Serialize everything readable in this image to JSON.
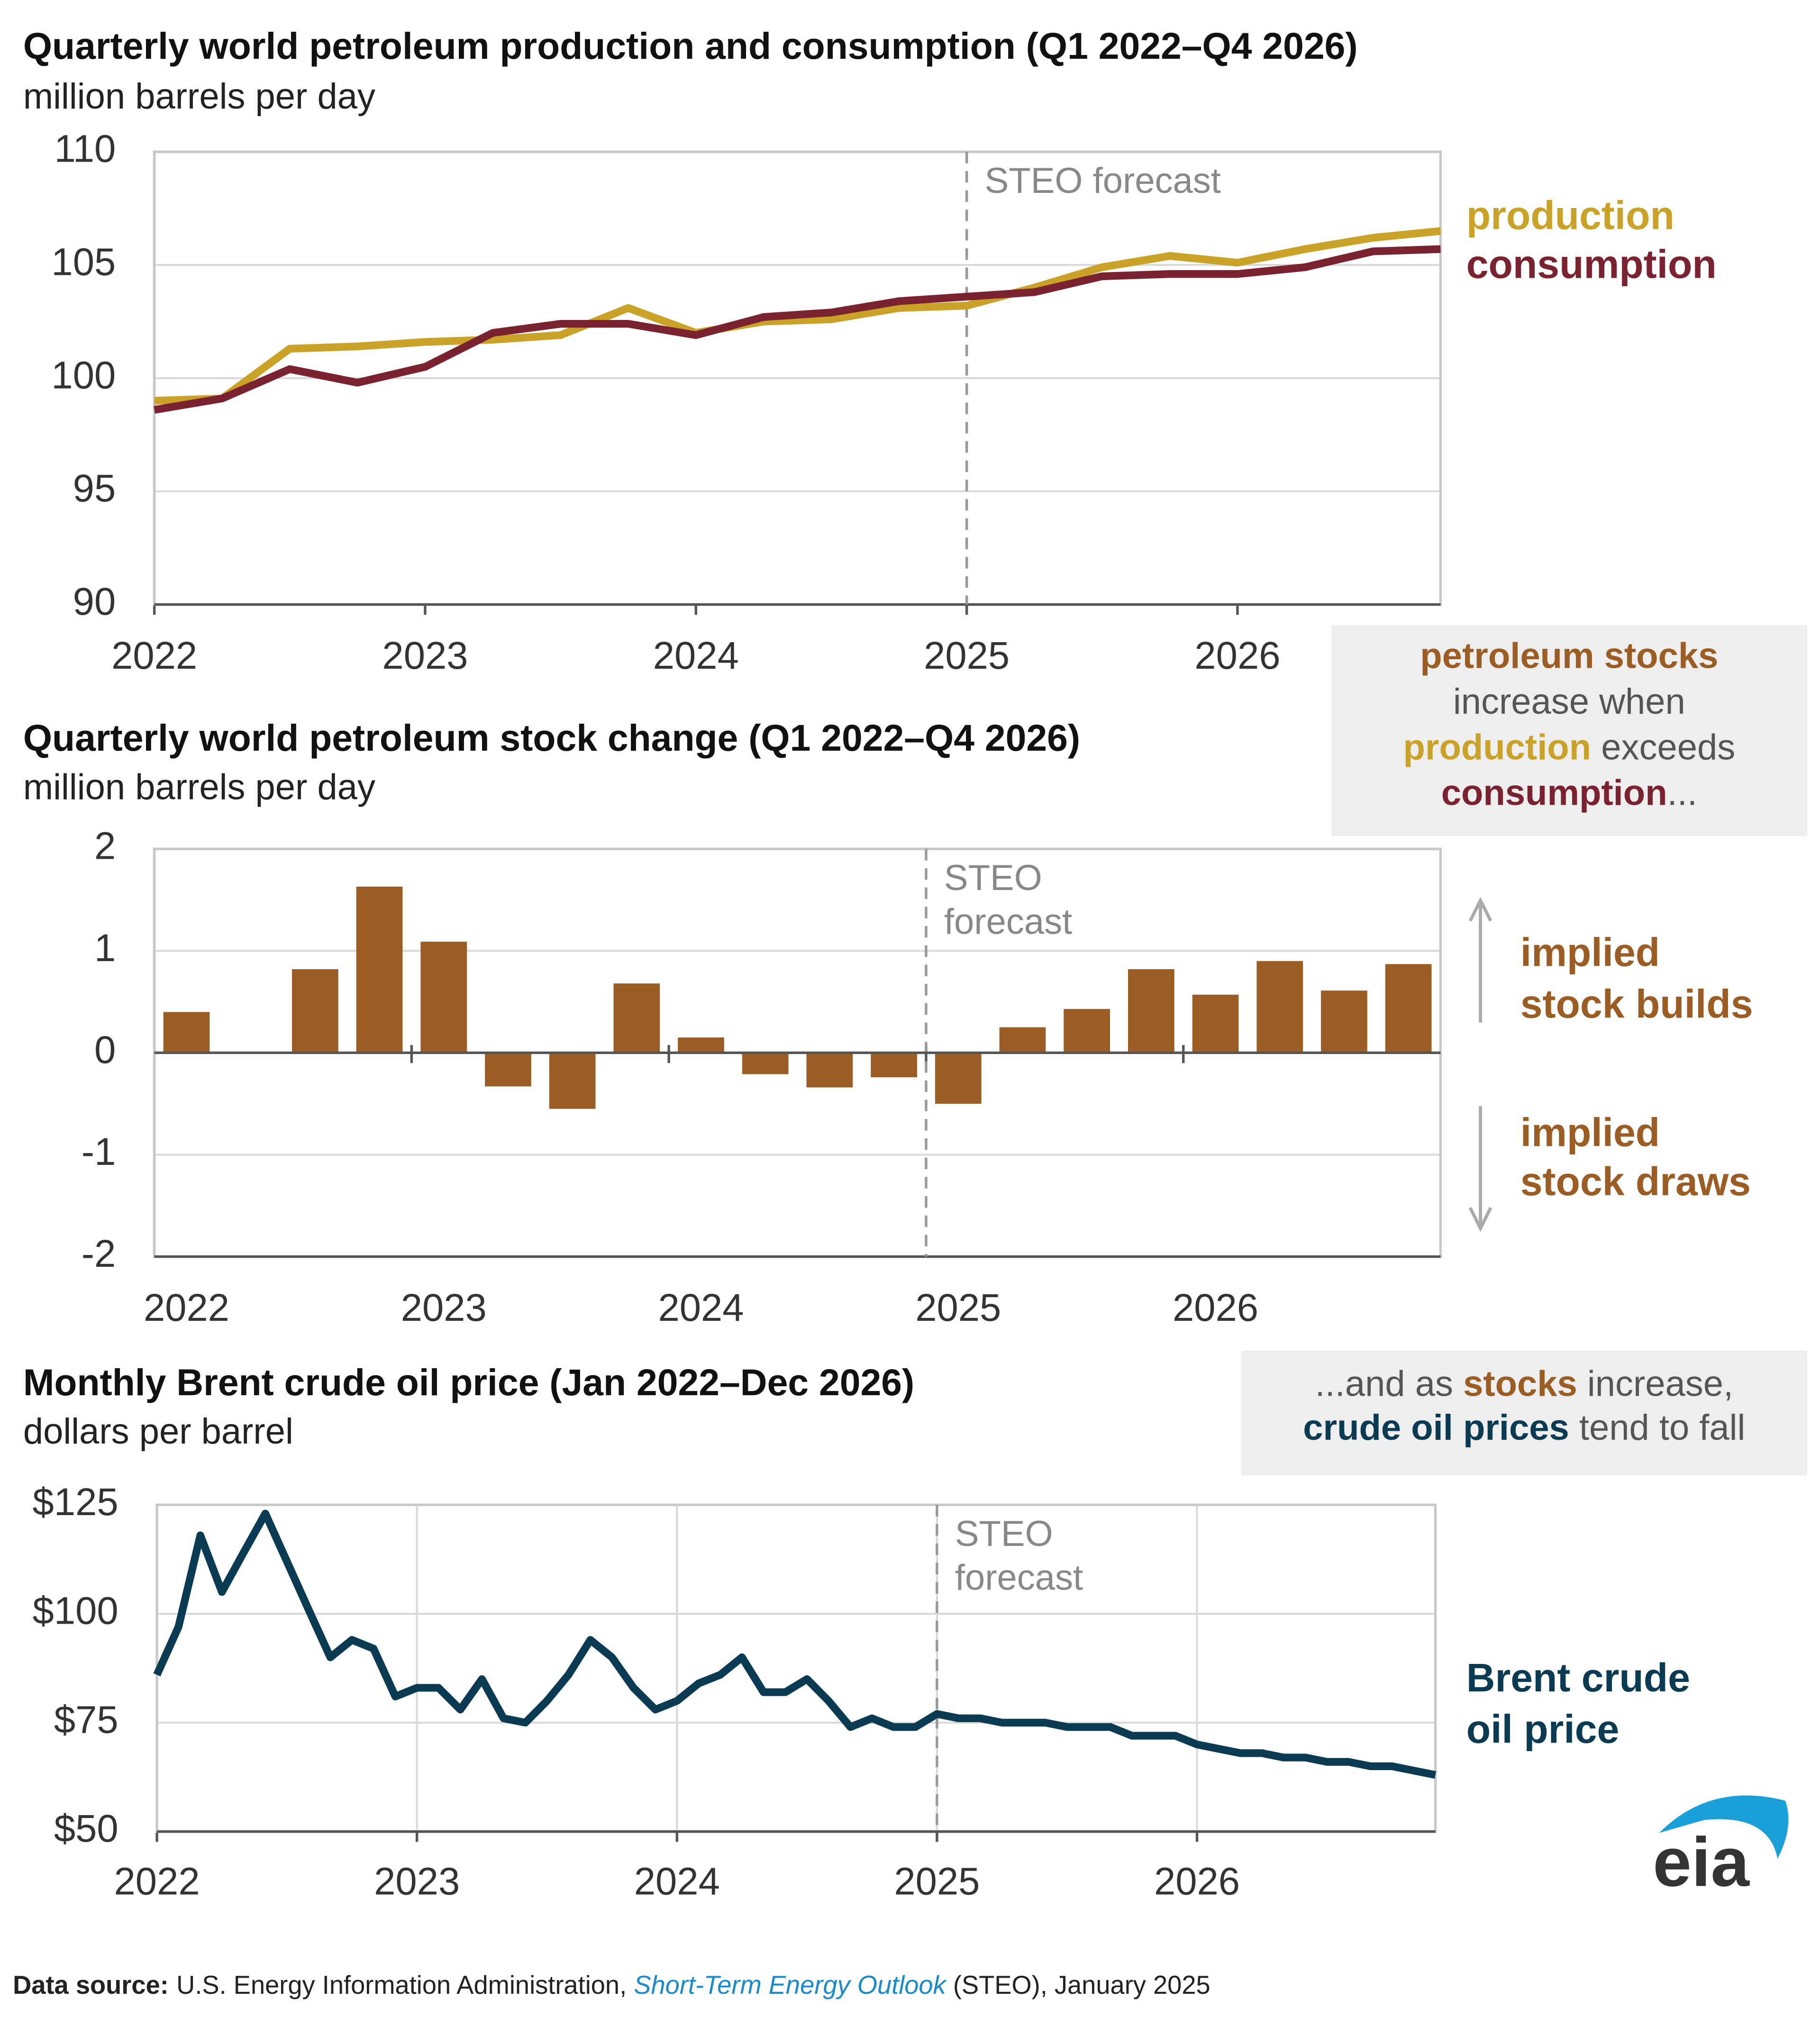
{
  "chart_data": [
    {
      "type": "line",
      "title": "Quarterly world petroleum production and consumption (Q1 2022–Q4 2026)",
      "subtitle": "million barrels per day",
      "x": [
        2022,
        2022.25,
        2022.5,
        2022.75,
        2023,
        2023.25,
        2023.5,
        2023.75,
        2024,
        2024.25,
        2024.5,
        2024.75,
        2025,
        2025.25,
        2025.5,
        2025.75,
        2026,
        2026.25,
        2026.5,
        2026.75
      ],
      "series": [
        {
          "name": "production",
          "color": "#c9a227",
          "values": [
            99.0,
            99.1,
            101.3,
            101.4,
            101.6,
            101.7,
            101.9,
            103.1,
            102.0,
            102.5,
            102.6,
            103.1,
            103.2,
            104.0,
            104.9,
            105.4,
            105.1,
            105.7,
            106.2,
            106.5
          ]
        },
        {
          "name": "consumption",
          "color": "#7b2231",
          "values": [
            98.6,
            99.1,
            100.4,
            99.8,
            100.5,
            102.0,
            102.4,
            102.4,
            101.9,
            102.7,
            102.9,
            103.4,
            103.6,
            103.8,
            104.5,
            104.6,
            104.6,
            104.9,
            105.6,
            105.7
          ]
        }
      ],
      "xlim": [
        2022,
        2026.75
      ],
      "xticks": [
        2022,
        2023,
        2024,
        2025,
        2026
      ],
      "ylim": [
        90,
        110
      ],
      "yticks": [
        90,
        95,
        100,
        105,
        110
      ],
      "grid": true,
      "forecast": {
        "x": 2025,
        "label": "STEO forecast"
      }
    },
    {
      "type": "bar",
      "title": "Quarterly world petroleum stock change (Q1 2022–Q4 2026)",
      "subtitle": "million barrels per day",
      "x": [
        2022,
        2022.25,
        2022.5,
        2022.75,
        2023,
        2023.25,
        2023.5,
        2023.75,
        2024,
        2024.25,
        2024.5,
        2024.75,
        2025,
        2025.25,
        2025.5,
        2025.75,
        2026,
        2026.25,
        2026.5,
        2026.75
      ],
      "values": [
        0.4,
        0.0,
        0.82,
        1.63,
        1.09,
        -0.33,
        -0.55,
        0.68,
        0.15,
        -0.21,
        -0.34,
        -0.24,
        -0.5,
        0.25,
        0.43,
        0.82,
        0.57,
        0.9,
        0.61,
        0.87
      ],
      "color": "#9b5d23",
      "xlim": [
        2022,
        2027
      ],
      "xticks": [
        2022,
        2023,
        2024,
        2025,
        2026
      ],
      "ylim": [
        -2,
        2
      ],
      "yticks": [
        -2,
        -1,
        0,
        1,
        2
      ],
      "grid": true,
      "forecast": {
        "x": 2025,
        "label": "STEO forecast"
      },
      "annotations": [
        [
          "implied",
          "stock builds"
        ],
        [
          "implied",
          "stock draws"
        ]
      ]
    },
    {
      "type": "line",
      "title": "Monthly Brent crude oil price (Jan 2022–Dec 2026)",
      "subtitle": "dollars per barrel",
      "x": [
        2022,
        2022.083,
        2022.167,
        2022.25,
        2022.333,
        2022.417,
        2022.5,
        2022.583,
        2022.667,
        2022.75,
        2022.833,
        2022.917,
        2023,
        2023.083,
        2023.167,
        2023.25,
        2023.333,
        2023.417,
        2023.5,
        2023.583,
        2023.667,
        2023.75,
        2023.833,
        2023.917,
        2024,
        2024.083,
        2024.167,
        2024.25,
        2024.333,
        2024.417,
        2024.5,
        2024.583,
        2024.667,
        2024.75,
        2024.833,
        2024.917,
        2025,
        2025.083,
        2025.167,
        2025.25,
        2025.333,
        2025.417,
        2025.5,
        2025.583,
        2025.667,
        2025.75,
        2025.833,
        2025.917,
        2026,
        2026.083,
        2026.167,
        2026.25,
        2026.333,
        2026.417,
        2026.5,
        2026.583,
        2026.667,
        2026.75,
        2026.833,
        2026.917
      ],
      "series": [
        {
          "name": "Brent crude oil price",
          "color": "#0b3a53",
          "values": [
            86,
            97,
            118,
            105,
            114,
            123,
            112,
            101,
            90,
            94,
            92,
            81,
            83,
            83,
            78,
            85,
            76,
            75,
            80,
            86,
            94,
            90,
            83,
            78,
            80,
            84,
            86,
            90,
            82,
            82,
            85,
            80,
            74,
            76,
            74,
            74,
            77,
            76,
            76,
            75,
            75,
            75,
            74,
            74,
            74,
            72,
            72,
            72,
            70,
            69,
            68,
            68,
            67,
            67,
            66,
            66,
            65,
            65,
            64,
            63
          ]
        }
      ],
      "xlim": [
        2022,
        2026.917
      ],
      "xticks": [
        2022,
        2023,
        2024,
        2025,
        2026
      ],
      "ylim": [
        50,
        125
      ],
      "yticks": [
        {
          "value": 50,
          "label": "$50"
        },
        {
          "value": 75,
          "label": "$75"
        },
        {
          "value": 100,
          "label": "$100"
        },
        {
          "value": 125,
          "label": "$125"
        }
      ],
      "grid": true,
      "vgrid": true,
      "forecast": {
        "x": 2025,
        "label": "STEO forecast"
      }
    }
  ],
  "annotations": [
    [
      [
        {
          "text": "petroleum stocks",
          "color": "#9b5d23",
          "bold": true
        }
      ],
      [
        {
          "text": "increase when"
        }
      ],
      [
        {
          "text": "production",
          "color": "#c9a227",
          "bold": true
        },
        {
          "text": " exceeds"
        }
      ],
      [
        {
          "text": "consumption",
          "color": "#7b2231",
          "bold": true
        },
        {
          "text": "..."
        }
      ]
    ],
    [
      [
        {
          "text": "...and as "
        },
        {
          "text": "stocks",
          "color": "#9b5d23",
          "bold": true
        },
        {
          "text": " increase,"
        }
      ],
      [
        {
          "text": "crude oil prices",
          "color": "#0b3a53",
          "bold": true
        },
        {
          "text": " tend to fall"
        }
      ]
    ]
  ],
  "logo": "eia",
  "source": {
    "label": "Data source:",
    "text": "U.S. Energy Information Administration, ",
    "publication": "Short-Term Energy Outlook",
    "rest": " (STEO), January 2025"
  }
}
